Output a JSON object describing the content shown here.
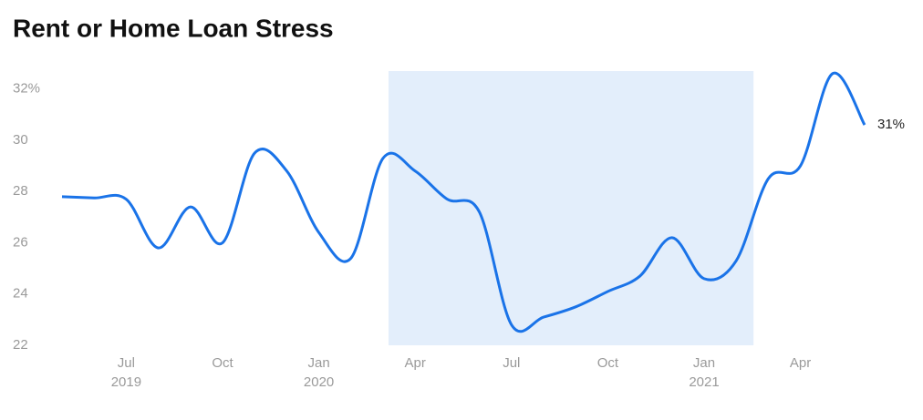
{
  "chart_data": {
    "type": "line",
    "title": "Rent or Home Loan Stress",
    "x": [
      "2019-05",
      "2019-06",
      "2019-07",
      "2019-08",
      "2019-09",
      "2019-10",
      "2019-11",
      "2019-12",
      "2020-01",
      "2020-02",
      "2020-03",
      "2020-04",
      "2020-05",
      "2020-06",
      "2020-07",
      "2020-08",
      "2020-09",
      "2020-10",
      "2020-11",
      "2020-12",
      "2021-01",
      "2021-02",
      "2021-03",
      "2021-04",
      "2021-05",
      "2021-06"
    ],
    "values": [
      27.8,
      27.75,
      27.7,
      25.8,
      27.4,
      26.0,
      29.5,
      28.8,
      26.4,
      25.4,
      29.3,
      28.8,
      27.7,
      27.2,
      22.8,
      23.1,
      23.5,
      24.1,
      24.7,
      26.2,
      24.6,
      25.3,
      28.5,
      29.0,
      32.6,
      30.6
    ],
    "value_labels": [
      null,
      null,
      null,
      null,
      null,
      null,
      null,
      null,
      null,
      null,
      null,
      null,
      null,
      null,
      null,
      null,
      null,
      null,
      null,
      null,
      null,
      null,
      null,
      null,
      null,
      "31%"
    ],
    "color": "#1a73e8",
    "shade": [
      "2020-03",
      "2021-02"
    ],
    "shade_color": "#e3eefb",
    "ylim": [
      22,
      32.7
    ],
    "yticks": [
      22,
      24,
      26,
      28,
      30,
      {
        "value": 32,
        "label": "32%"
      }
    ],
    "xticks": [
      {
        "value": "2019-07",
        "label": "Jul",
        "sublabel": "2019"
      },
      {
        "value": "2019-10",
        "label": "Oct"
      },
      {
        "value": "2020-01",
        "label": "Jan",
        "sublabel": "2020"
      },
      {
        "value": "2020-04",
        "label": "Apr"
      },
      {
        "value": "2020-07",
        "label": "Jul"
      },
      {
        "value": "2020-10",
        "label": "Oct"
      },
      {
        "value": "2021-01",
        "label": "Jan",
        "sublabel": "2021"
      },
      {
        "value": "2021-04",
        "label": "Apr"
      }
    ]
  }
}
